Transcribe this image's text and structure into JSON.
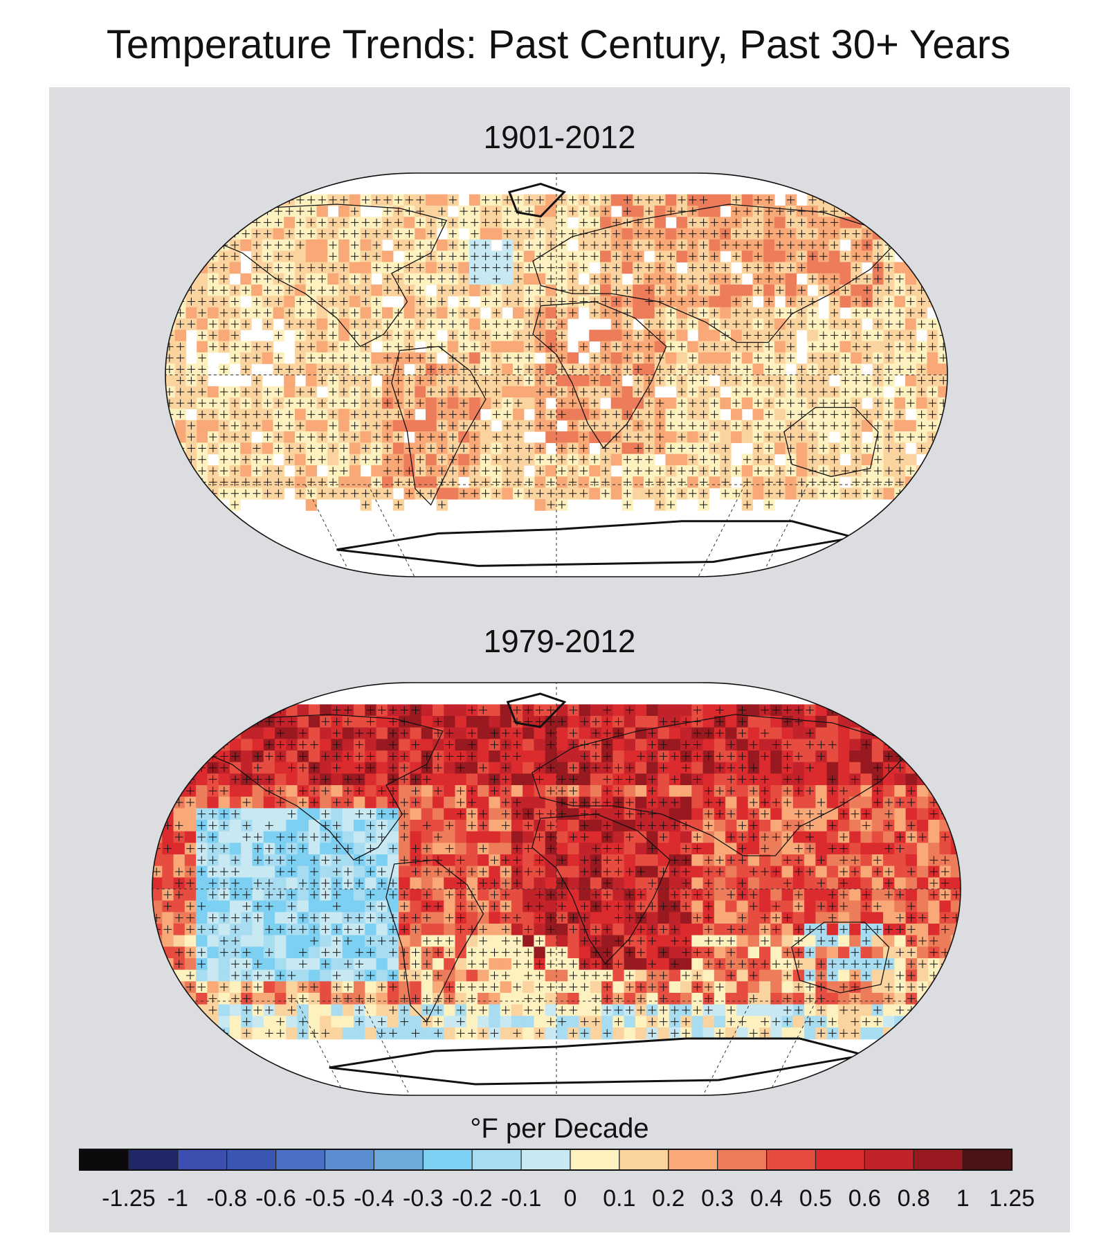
{
  "title": "Temperature Trends: Past Century, Past 30+ Years",
  "maps": [
    {
      "title": "1901-2012"
    },
    {
      "title": "1979-2012"
    }
  ],
  "colorbar": {
    "title": "°F per Decade",
    "bins": [
      "#0b0b0d",
      "#1f2766",
      "#3a4fb0",
      "#3b57b4",
      "#4b6fc2",
      "#5b8dd0",
      "#6fa9dc",
      "#7dd0f2",
      "#a7dcf1",
      "#c8e8f2",
      "#fdf1bf",
      "#fbd39e",
      "#f8a977",
      "#ec7c5a",
      "#e64c40",
      "#dc2b2e",
      "#c2222a",
      "#98191f",
      "#4b1414"
    ],
    "labels": [
      "-1.25",
      "-1",
      "-0.8",
      "-0.6",
      "-0.5",
      "-0.4",
      "-0.3",
      "-0.2",
      "-0.1",
      "0",
      "0.1",
      "0.2",
      "0.3",
      "0.4",
      "0.5",
      "0.6",
      "0.8",
      "1",
      "1.25"
    ]
  }
}
